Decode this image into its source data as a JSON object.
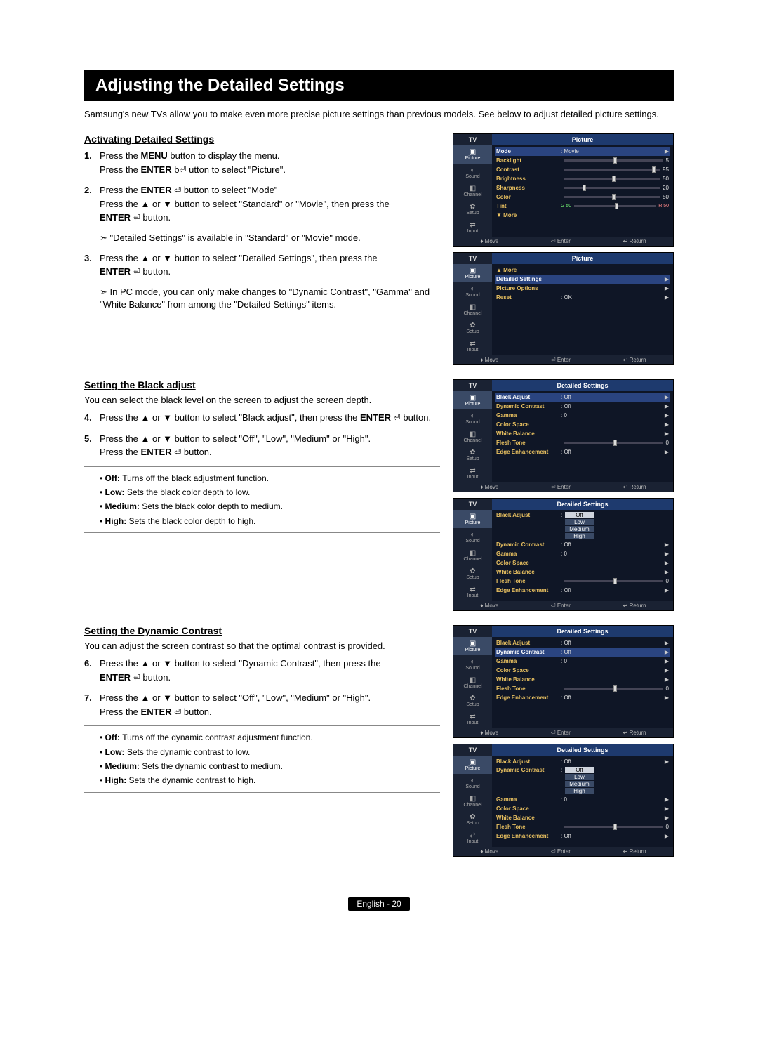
{
  "page": {
    "title": "Adjusting the Detailed Settings",
    "intro": "Samsung's new TVs allow you to make even more precise picture settings than previous models. See below to adjust detailed picture settings.",
    "footer": "English - 20"
  },
  "sections": {
    "activating": {
      "heading": "Activating Detailed Settings",
      "steps": {
        "s1": {
          "num": "1.",
          "l1a": "Press the ",
          "l1b": "MENU",
          "l1c": " button to display the menu.",
          "l2a": "Press the ",
          "l2b": "ENTER",
          "l2c": " b",
          "l2d": " utton to select \"Picture\"."
        },
        "s2": {
          "num": "2.",
          "l1a": "Press the ",
          "l1b": "ENTER",
          "l1c": " ",
          "l1d": " button to select \"Mode\"",
          "l2": "Press the ▲ or ▼ button to select \"Standard\" or \"Movie\", then press the",
          "l3a": "ENTER",
          "l3b": " ",
          "l3c": " button."
        },
        "note1": "\"Detailed Settings\" is available in \"Standard\" or \"Movie\" mode.",
        "s3": {
          "num": "3.",
          "l1": "Press the ▲ or ▼ button to select \"Detailed Settings\", then press the",
          "l2a": "ENTER",
          "l2b": " ",
          "l2c": " button."
        },
        "note2": "In PC mode, you can only make changes to \"Dynamic Contrast\", \"Gamma\" and \"White Balance\" from among the \"Detailed Settings\" items."
      }
    },
    "black": {
      "heading": "Setting the Black adjust",
      "desc": "You can select the black level on the screen to adjust the screen depth.",
      "steps": {
        "s4": {
          "num": "4.",
          "l1a": "Press the ▲ or ▼ button to select \"Black adjust\", then press the ",
          "l1b": "ENTER",
          "l1c": " ",
          "l1d": " button."
        },
        "s5": {
          "num": "5.",
          "l1": "Press the ▲ or ▼ button to select \"Off\", \"Low\", \"Medium\" or \"High\".",
          "l2a": "Press the ",
          "l2b": "ENTER",
          "l2c": " ",
          "l2d": " button."
        }
      },
      "bullets": {
        "off": {
          "b": "Off: ",
          "t": "Turns off the black adjustment function."
        },
        "low": {
          "b": "Low: ",
          "t": "Sets the black color depth to low."
        },
        "med": {
          "b": "Medium: ",
          "t": "Sets the black color depth to medium."
        },
        "high": {
          "b": "High: ",
          "t": "Sets the black color depth to high."
        }
      }
    },
    "dynamic": {
      "heading": "Setting the Dynamic Contrast",
      "desc": "You can adjust the screen contrast so that the optimal contrast is provided.",
      "steps": {
        "s6": {
          "num": "6.",
          "l1": "Press the ▲ or ▼ button to select \"Dynamic Contrast\", then press the",
          "l2a": "ENTER",
          "l2b": " ",
          "l2c": " button."
        },
        "s7": {
          "num": "7.",
          "l1": "Press the ▲ or ▼ button to select \"Off\", \"Low\", \"Medium\" or \"High\".",
          "l2a": "Press the ",
          "l2b": "ENTER",
          "l2c": " ",
          "l2d": " button."
        }
      },
      "bullets": {
        "off": {
          "b": "Off: ",
          "t": "Turns off the dynamic contrast adjustment function."
        },
        "low": {
          "b": "Low: ",
          "t": "Sets the dynamic contrast to low."
        },
        "med": {
          "b": "Medium: ",
          "t": "Sets the dynamic contrast to medium."
        },
        "high": {
          "b": "High: ",
          "t": "Sets the dynamic contrast to high."
        }
      }
    }
  },
  "osd": {
    "tv_label": "TV",
    "side": [
      "Picture",
      "Sound",
      "Channel",
      "Setup",
      "Input"
    ],
    "side_icons": [
      "▣",
      "◐",
      "◧",
      "✿",
      "⇄"
    ],
    "footer": {
      "move": "Move",
      "enter": "Enter",
      "return": "Return",
      "move_icon": "♦",
      "enter_icon": "⏎",
      "return_icon": "↩"
    },
    "screen1": {
      "title": "Picture",
      "rows": {
        "mode": {
          "lab": "Mode",
          "val": ": Movie"
        },
        "backlight": {
          "lab": "Backlight",
          "val": "5",
          "thumb_pct": 50
        },
        "contrast": {
          "lab": "Contrast",
          "val": "95",
          "thumb_pct": 92
        },
        "brightness": {
          "lab": "Brightness",
          "val": "50",
          "thumb_pct": 50
        },
        "sharpness": {
          "lab": "Sharpness",
          "val": "20",
          "thumb_pct": 20
        },
        "color": {
          "lab": "Color",
          "val": "50",
          "thumb_pct": 50
        },
        "tint": {
          "lab": "Tint",
          "g": "G 50",
          "r": "R 50",
          "thumb_pct": 50
        },
        "more": {
          "lab": "▼ More"
        }
      }
    },
    "screen2": {
      "title": "Picture",
      "rows": {
        "more": {
          "lab": "▲ More"
        },
        "ds": {
          "lab": "Detailed Settings"
        },
        "po": {
          "lab": "Picture Options"
        },
        "reset": {
          "lab": "Reset",
          "val": ": OK"
        }
      }
    },
    "screen_ds": {
      "title": "Detailed Settings",
      "rows": {
        "ba": {
          "lab": "Black Adjust",
          "val": ": Off"
        },
        "dc": {
          "lab": "Dynamic Contrast",
          "val": ": Off"
        },
        "gm": {
          "lab": "Gamma",
          "val": ": 0"
        },
        "cs": {
          "lab": "Color Space"
        },
        "wb": {
          "lab": "White Balance"
        },
        "ft": {
          "lab": "Flesh Tone",
          "val": "0",
          "thumb_pct": 50
        },
        "ee": {
          "lab": "Edge Enhancement",
          "val": ": Off"
        }
      }
    },
    "options": {
      "off": "Off",
      "low": "Low",
      "med": "Medium",
      "high": "High"
    }
  }
}
